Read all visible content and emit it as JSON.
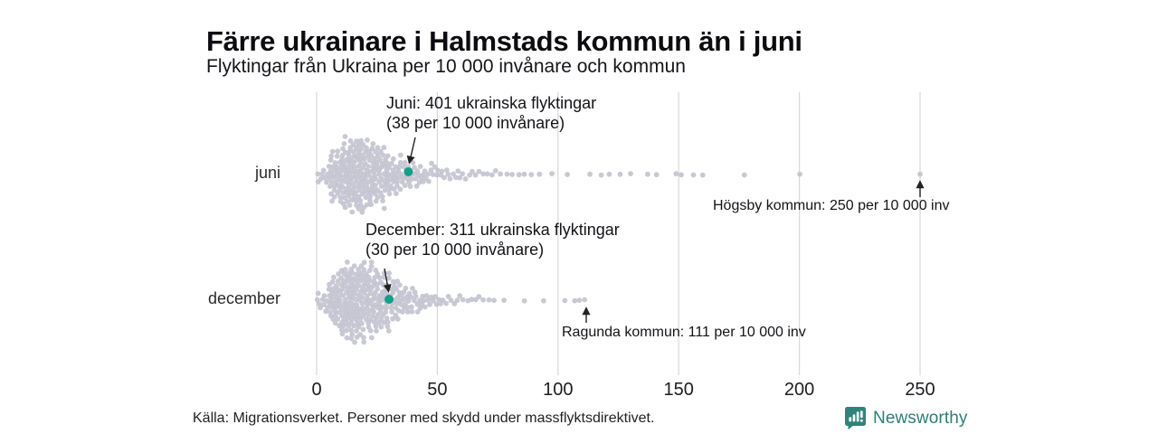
{
  "header": {
    "title": "Färre ukrainare i Halmstads kommun än i juni",
    "subtitle": "Flyktingar från Ukraina per 10 000 invånare och kommun"
  },
  "chart_data": {
    "type": "beeswarm",
    "title": "Färre ukrainare i Halmstads kommun än i juni",
    "subtitle": "Flyktingar från Ukraina per 10 000 invånare och kommun",
    "xlabel": "Flyktingar från Ukraina per 10 000 invånare",
    "xlim": [
      0,
      250
    ],
    "x_ticks": [
      0,
      50,
      100,
      150,
      200,
      250
    ],
    "grid": "vertical",
    "colors": {
      "dot": "#c1c1cf",
      "highlight": "#12a089",
      "gridline": "#d9d9dc",
      "arrow": "#222222"
    },
    "rows": [
      {
        "label": "juni",
        "highlight": {
          "municipality": "Halmstads kommun",
          "refugees": 401,
          "per_10000": 38
        },
        "annotation": {
          "line1": "Juni: 401 ukrainska flyktingar",
          "line2": "(38 per 10 000 invånare)"
        },
        "outlier": {
          "label": "Högsby kommun: 250 per 10 000 inv",
          "municipality": "Högsby kommun",
          "per_10000": 250
        },
        "distribution_bins": [
          [
            0,
            5,
            8
          ],
          [
            5,
            10,
            30
          ],
          [
            10,
            15,
            45
          ],
          [
            15,
            20,
            48
          ],
          [
            20,
            25,
            40
          ],
          [
            25,
            30,
            32
          ],
          [
            30,
            35,
            22
          ],
          [
            35,
            40,
            16
          ],
          [
            40,
            45,
            12
          ],
          [
            45,
            50,
            8
          ],
          [
            50,
            55,
            6
          ],
          [
            55,
            60,
            5
          ],
          [
            60,
            65,
            4
          ],
          [
            65,
            70,
            3
          ],
          [
            70,
            75,
            3
          ],
          [
            75,
            80,
            2
          ],
          [
            80,
            85,
            2
          ],
          [
            85,
            90,
            2
          ],
          [
            90,
            95,
            1
          ],
          [
            95,
            100,
            1
          ]
        ],
        "tail_values": [
          104,
          113,
          118,
          121,
          126,
          130,
          137,
          141,
          149,
          151,
          156,
          160,
          177,
          200,
          250
        ]
      },
      {
        "label": "december",
        "highlight": {
          "municipality": "Halmstads kommun",
          "refugees": 311,
          "per_10000": 30
        },
        "annotation": {
          "line1": "December: 311 ukrainska flyktingar",
          "line2": "(30 per 10 000 invånare)"
        },
        "outlier": {
          "label": "Ragunda kommun: 111 per 10 000 inv",
          "municipality": "Ragunda kommun",
          "per_10000": 111
        },
        "distribution_bins": [
          [
            0,
            5,
            10
          ],
          [
            5,
            10,
            32
          ],
          [
            10,
            15,
            50
          ],
          [
            15,
            20,
            50
          ],
          [
            20,
            25,
            42
          ],
          [
            25,
            30,
            34
          ],
          [
            30,
            35,
            24
          ],
          [
            35,
            40,
            16
          ],
          [
            40,
            45,
            11
          ],
          [
            45,
            50,
            7
          ],
          [
            50,
            55,
            5
          ],
          [
            55,
            60,
            4
          ],
          [
            60,
            65,
            3
          ],
          [
            65,
            70,
            3
          ],
          [
            70,
            75,
            2
          ],
          [
            75,
            80,
            1
          ]
        ],
        "tail_values": [
          86,
          94,
          103,
          107,
          109,
          111
        ]
      }
    ]
  },
  "footer": {
    "source": "Källa: Migrationsverket. Personer med skydd under massflyktsdirektivet.",
    "brand": "Newsworthy"
  }
}
